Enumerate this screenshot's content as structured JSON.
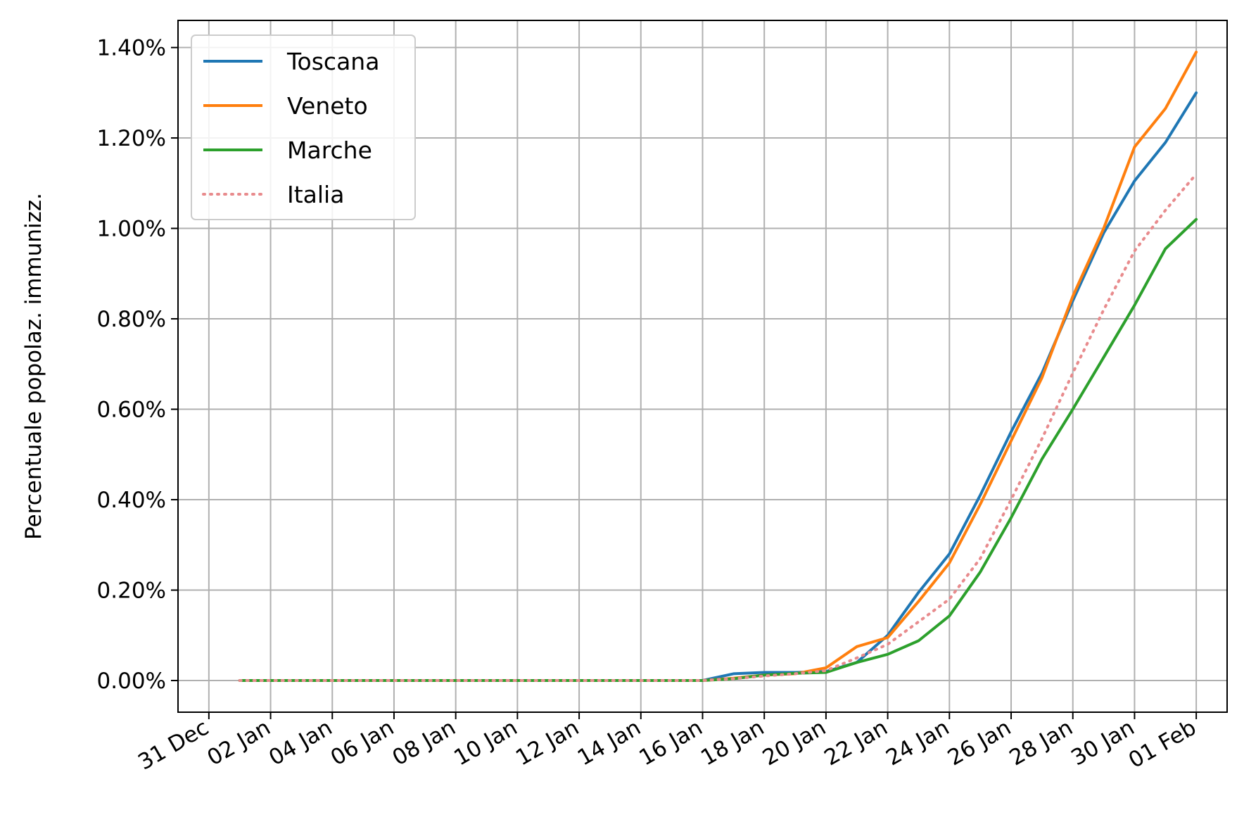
{
  "chart_data": {
    "type": "line",
    "ylabel": "Percentuale popolaz. immunizz.",
    "xlabel": "",
    "title": "",
    "grid": true,
    "legend_position": "top-left",
    "x_ticks": [
      "31 Dec",
      "02 Jan",
      "04 Jan",
      "06 Jan",
      "08 Jan",
      "10 Jan",
      "12 Jan",
      "14 Jan",
      "16 Jan",
      "18 Jan",
      "20 Jan",
      "22 Jan",
      "24 Jan",
      "26 Jan",
      "28 Jan",
      "30 Jan",
      "01 Feb"
    ],
    "y_ticks": [
      "0.00%",
      "0.20%",
      "0.40%",
      "0.60%",
      "0.80%",
      "1.00%",
      "1.20%",
      "1.40%"
    ],
    "x": [
      "2021-01-01",
      "2021-01-02",
      "2021-01-03",
      "2021-01-04",
      "2021-01-05",
      "2021-01-06",
      "2021-01-07",
      "2021-01-08",
      "2021-01-09",
      "2021-01-10",
      "2021-01-11",
      "2021-01-12",
      "2021-01-13",
      "2021-01-14",
      "2021-01-15",
      "2021-01-16",
      "2021-01-17",
      "2021-01-18",
      "2021-01-19",
      "2021-01-20",
      "2021-01-21",
      "2021-01-22",
      "2021-01-23",
      "2021-01-24",
      "2021-01-25",
      "2021-01-26",
      "2021-01-27",
      "2021-01-28",
      "2021-01-29",
      "2021-01-30",
      "2021-01-31",
      "2021-02-01"
    ],
    "xlim": [
      "2020-12-30",
      "2021-02-02"
    ],
    "ylim": [
      -0.07,
      1.46
    ],
    "series": [
      {
        "name": "Toscana",
        "color": "#1f77b4",
        "style": "solid",
        "values": [
          0,
          0,
          0,
          0,
          0,
          0,
          0,
          0,
          0,
          0,
          0,
          0,
          0,
          0,
          0,
          0,
          0.015,
          0.018,
          0.018,
          0.02,
          0.04,
          0.1,
          0.195,
          0.28,
          0.41,
          0.55,
          0.68,
          0.84,
          0.99,
          1.105,
          1.19,
          1.3
        ]
      },
      {
        "name": "Veneto",
        "color": "#ff7f0e",
        "style": "solid",
        "values": [
          0,
          0,
          0,
          0,
          0,
          0,
          0,
          0,
          0,
          0,
          0,
          0,
          0,
          0,
          0,
          0,
          0.005,
          0.012,
          0.015,
          0.028,
          0.075,
          0.095,
          0.175,
          0.26,
          0.39,
          0.53,
          0.67,
          0.85,
          1.0,
          1.18,
          1.265,
          1.39
        ]
      },
      {
        "name": "Marche",
        "color": "#2ca02c",
        "style": "solid",
        "values": [
          0,
          0,
          0,
          0,
          0,
          0,
          0,
          0,
          0,
          0,
          0,
          0,
          0,
          0,
          0,
          0,
          0.004,
          0.012,
          0.016,
          0.018,
          0.04,
          0.058,
          0.088,
          0.143,
          0.24,
          0.36,
          0.49,
          0.6,
          0.715,
          0.83,
          0.955,
          1.02
        ]
      },
      {
        "name": "Italia",
        "color": "#e88b8d",
        "style": "dotted",
        "values": [
          0,
          0,
          0,
          0,
          0,
          0,
          0,
          0,
          0,
          0,
          0,
          0,
          0,
          0,
          0,
          0,
          0.004,
          0.01,
          0.015,
          0.022,
          0.05,
          0.08,
          0.13,
          0.18,
          0.27,
          0.4,
          0.535,
          0.68,
          0.82,
          0.95,
          1.04,
          1.12
        ]
      }
    ]
  }
}
